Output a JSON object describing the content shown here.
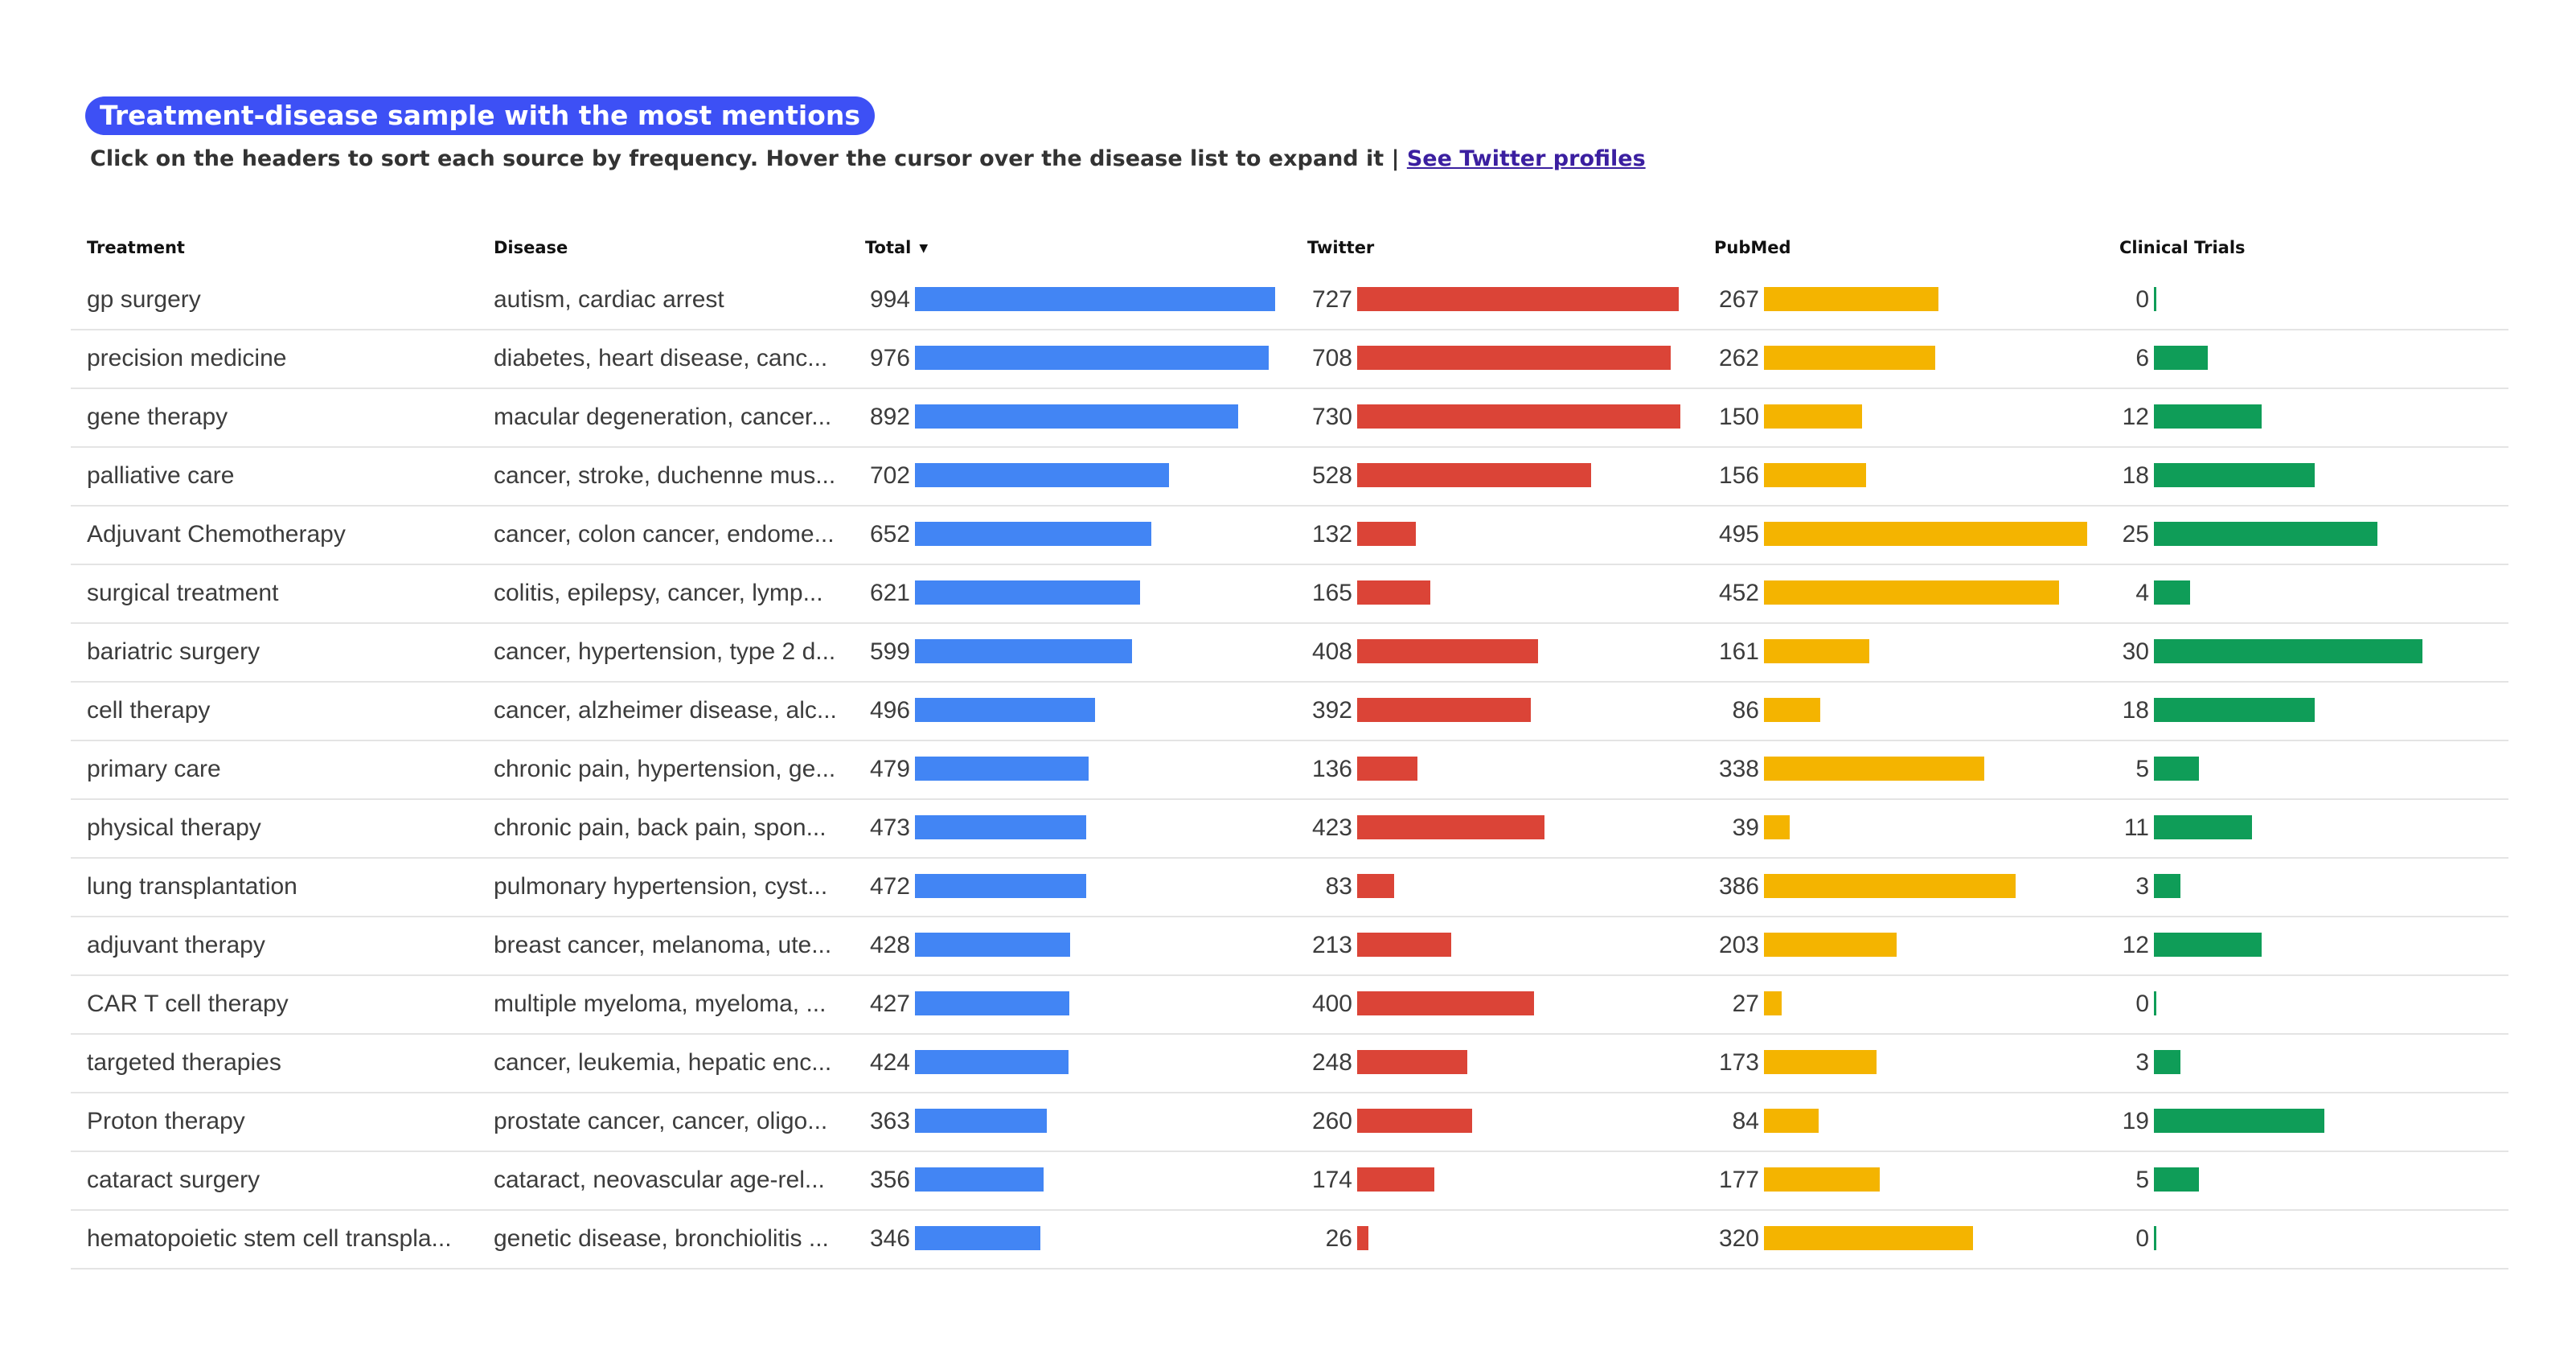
{
  "title": "Treatment-disease sample with the most mentions",
  "subtitle": "Click on the headers to sort each source by frequency. Hover the cursor over the disease list to expand it  |",
  "link_text": "See Twitter profiles",
  "headers": {
    "treatment": "Treatment",
    "disease": "Disease",
    "total": "Total",
    "twitter": "Twitter",
    "pubmed": "PubMed",
    "clinical": "Clinical Trials"
  },
  "colors": {
    "total": "#4285f4",
    "twitter": "#db4437",
    "pubmed": "#f4b400",
    "clinical": "#0f9d58",
    "title_bg": "#3d50f5"
  },
  "chart_data": {
    "type": "table",
    "columns": [
      "Treatment",
      "Disease",
      "Total",
      "Twitter",
      "PubMed",
      "Clinical Trials"
    ],
    "sorted_by": "Total",
    "rows": [
      {
        "treatment": "gp surgery",
        "disease": "autism, cardiac arrest",
        "total": 994,
        "twitter": 727,
        "pubmed": 267,
        "clinical": 0
      },
      {
        "treatment": "precision medicine",
        "disease": "diabetes, heart disease, canc...",
        "total": 976,
        "twitter": 708,
        "pubmed": 262,
        "clinical": 6
      },
      {
        "treatment": "gene therapy",
        "disease": "macular degeneration, cancer...",
        "total": 892,
        "twitter": 730,
        "pubmed": 150,
        "clinical": 12
      },
      {
        "treatment": "palliative care",
        "disease": "cancer, stroke, duchenne mus...",
        "total": 702,
        "twitter": 528,
        "pubmed": 156,
        "clinical": 18
      },
      {
        "treatment": "Adjuvant Chemotherapy",
        "disease": "cancer, colon cancer, endome...",
        "total": 652,
        "twitter": 132,
        "pubmed": 495,
        "clinical": 25
      },
      {
        "treatment": "surgical treatment",
        "disease": "colitis, epilepsy, cancer, lymp...",
        "total": 621,
        "twitter": 165,
        "pubmed": 452,
        "clinical": 4
      },
      {
        "treatment": "bariatric surgery",
        "disease": "cancer, hypertension, type 2 d...",
        "total": 599,
        "twitter": 408,
        "pubmed": 161,
        "clinical": 30
      },
      {
        "treatment": "cell therapy",
        "disease": "cancer, alzheimer disease, alc...",
        "total": 496,
        "twitter": 392,
        "pubmed": 86,
        "clinical": 18
      },
      {
        "treatment": "primary care",
        "disease": "chronic pain, hypertension, ge...",
        "total": 479,
        "twitter": 136,
        "pubmed": 338,
        "clinical": 5
      },
      {
        "treatment": "physical therapy",
        "disease": "chronic pain, back pain, spon...",
        "total": 473,
        "twitter": 423,
        "pubmed": 39,
        "clinical": 11
      },
      {
        "treatment": "lung transplantation",
        "disease": "pulmonary hypertension, cyst...",
        "total": 472,
        "twitter": 83,
        "pubmed": 386,
        "clinical": 3
      },
      {
        "treatment": "adjuvant therapy",
        "disease": "breast cancer, melanoma, ute...",
        "total": 428,
        "twitter": 213,
        "pubmed": 203,
        "clinical": 12
      },
      {
        "treatment": "CAR T cell therapy",
        "disease": "multiple myeloma, myeloma, ...",
        "total": 427,
        "twitter": 400,
        "pubmed": 27,
        "clinical": 0
      },
      {
        "treatment": "targeted therapies",
        "disease": "cancer, leukemia, hepatic enc...",
        "total": 424,
        "twitter": 248,
        "pubmed": 173,
        "clinical": 3
      },
      {
        "treatment": "Proton therapy",
        "disease": "prostate cancer, cancer, oligo...",
        "total": 363,
        "twitter": 260,
        "pubmed": 84,
        "clinical": 19
      },
      {
        "treatment": "cataract surgery",
        "disease": "cataract, neovascular age-rel...",
        "total": 356,
        "twitter": 174,
        "pubmed": 177,
        "clinical": 5
      },
      {
        "treatment": "hematopoietic stem cell transpla...",
        "disease": "genetic disease, bronchiolitis ...",
        "total": 346,
        "twitter": 26,
        "pubmed": 320,
        "clinical": 0
      }
    ]
  }
}
